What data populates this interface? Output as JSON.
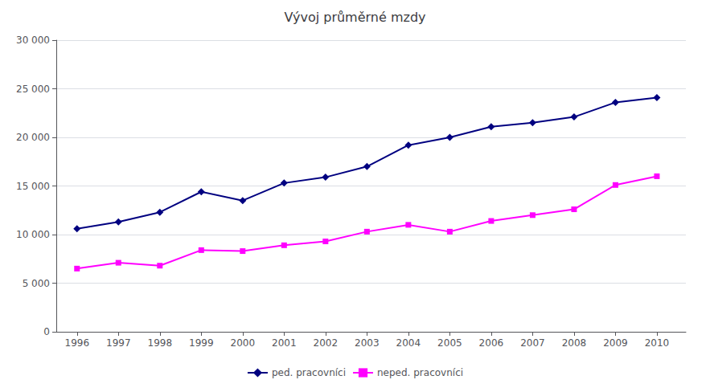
{
  "chart_data": {
    "type": "line",
    "title": "Vývoj průměrné mzdy",
    "x": [
      1996,
      1997,
      1998,
      1999,
      2000,
      2001,
      2002,
      2003,
      2004,
      2005,
      2006,
      2007,
      2008,
      2009,
      2010
    ],
    "series": [
      {
        "name": "ped. pracovníci",
        "color": "#000080",
        "marker": "diamond",
        "line_style": "solid",
        "values": [
          10600,
          11300,
          12300,
          14400,
          13500,
          15300,
          15900,
          17000,
          19200,
          20000,
          21100,
          21500,
          22100,
          23600,
          24100
        ]
      },
      {
        "name": "neped. pracovníci",
        "color": "#FF00FF",
        "marker": "square",
        "line_style": "solid",
        "values": [
          6500,
          7100,
          6800,
          8400,
          8300,
          8900,
          9300,
          10300,
          11000,
          10300,
          11400,
          12000,
          12600,
          15100,
          16000
        ]
      }
    ],
    "xlim": [
      1995.5,
      2010.7
    ],
    "xticks": [
      1996,
      1997,
      1998,
      1999,
      2000,
      2001,
      2002,
      2003,
      2004,
      2005,
      2006,
      2007,
      2008,
      2009,
      2010
    ],
    "ylim": [
      0,
      30000
    ],
    "yticks": [
      0,
      {
        "value": 5000,
        "label": "5 000"
      },
      {
        "value": 10000,
        "label": "10 000"
      },
      {
        "value": 15000,
        "label": "15 000"
      },
      {
        "value": 20000,
        "label": "20 000"
      },
      {
        "value": 25000,
        "label": "25 000"
      },
      {
        "value": 30000,
        "label": "30 000"
      }
    ],
    "grid": "y",
    "legend": "bottom"
  }
}
